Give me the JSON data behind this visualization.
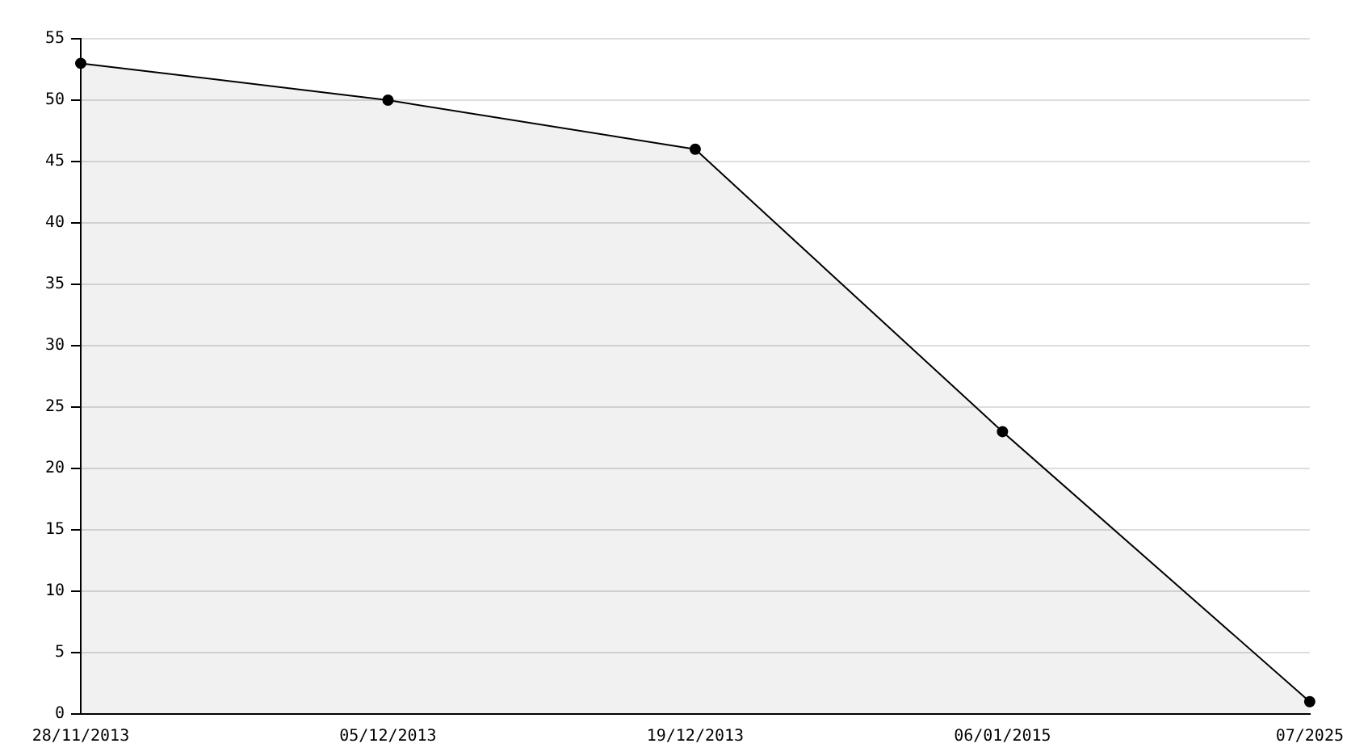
{
  "chart_data": {
    "type": "area",
    "categories": [
      "28/11/2013",
      "05/12/2013",
      "19/12/2013",
      "06/01/2015",
      "07/2025"
    ],
    "series": [
      {
        "color": "#000000",
        "values": [
          53,
          50,
          46,
          23,
          1
        ]
      }
    ],
    "ylim": [
      0,
      55
    ],
    "yticks": [
      0,
      5,
      10,
      15,
      20,
      25,
      30,
      35,
      40,
      45,
      50,
      55
    ],
    "grid": "y",
    "legend": false,
    "marker": "circle",
    "line_style": "solid"
  }
}
